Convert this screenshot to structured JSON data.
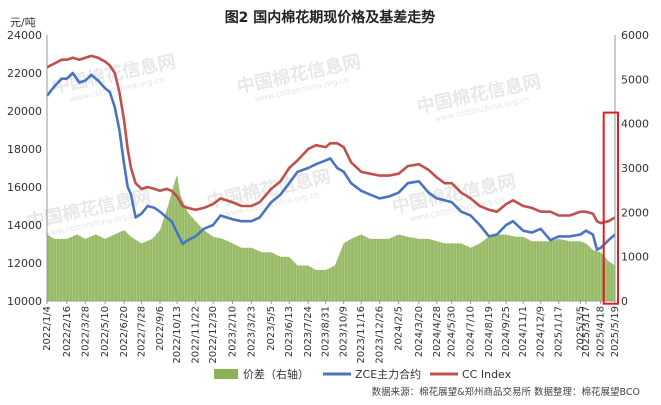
{
  "chart_data": {
    "type": "line",
    "title": "图2  国内棉花期现价格及基差走势",
    "y_left_unit": "元/吨",
    "y_left_range": [
      10000,
      24000
    ],
    "y_left_ticks": [
      "10000",
      "12000",
      "14000",
      "16000",
      "18000",
      "20000",
      "22000",
      "24000"
    ],
    "y_right_range": [
      0,
      6000
    ],
    "y_right_ticks": [
      "0",
      "1000",
      "2000",
      "3000",
      "4000",
      "5000",
      "6000"
    ],
    "x_range": [
      "2022-01-04",
      "2025-05-19"
    ],
    "x_ticks": [
      {
        "label": "2022/1/4",
        "date": "2022-01-04"
      },
      {
        "label": "2022/2/16",
        "date": "2022-02-16"
      },
      {
        "label": "2022/3/28",
        "date": "2022-03-28"
      },
      {
        "label": "2022/5/10",
        "date": "2022-05-10"
      },
      {
        "label": "2022/6/20",
        "date": "2022-06-20"
      },
      {
        "label": "2022/7/28",
        "date": "2022-07-28"
      },
      {
        "label": "2022/9/6",
        "date": "2022-09-06"
      },
      {
        "label": "2022/10/13",
        "date": "2022-10-13"
      },
      {
        "label": "2022/11/22",
        "date": "2022-11-22"
      },
      {
        "label": "2022/12/30",
        "date": "2022-12-30"
      },
      {
        "label": "2023/2/10",
        "date": "2023-02-10"
      },
      {
        "label": "2023/3/23",
        "date": "2023-03-23"
      },
      {
        "label": "2023/5/5",
        "date": "2023-05-05"
      },
      {
        "label": "2023/6/13",
        "date": "2023-06-13"
      },
      {
        "label": "2023/7/24",
        "date": "2023-07-24"
      },
      {
        "label": "2023/8/31",
        "date": "2023-08-31"
      },
      {
        "label": "2023/10/9",
        "date": "2023-10-09"
      },
      {
        "label": "2023/11/16",
        "date": "2023-11-16"
      },
      {
        "label": "2023/12/26",
        "date": "2023-12-26"
      },
      {
        "label": "2024/2/5",
        "date": "2024-02-05"
      },
      {
        "label": "2024/3/20",
        "date": "2024-03-20"
      },
      {
        "label": "2024/4/28",
        "date": "2024-04-28"
      },
      {
        "label": "2024/5/30",
        "date": "2024-05-30"
      },
      {
        "label": "2024/7/10",
        "date": "2024-07-10"
      },
      {
        "label": "2024/8/19",
        "date": "2024-08-19"
      },
      {
        "label": "2024/9/25",
        "date": "2024-09-25"
      },
      {
        "label": "2024/11/1",
        "date": "2024-11-01"
      },
      {
        "label": "2024/12/9",
        "date": "2024-12-09"
      },
      {
        "label": "2025/1/17",
        "date": "2025-01-17"
      },
      {
        "label": "2025/3/5",
        "date": "2025-03-05"
      },
      {
        "label": "2025/3/17",
        "date": "2025-03-17"
      },
      {
        "label": "2025/4/18",
        "date": "2025-04-18"
      },
      {
        "label": "2025/5/19",
        "date": "2025-05-19"
      }
    ],
    "series": [
      {
        "name": "价差（右轴）",
        "type": "area",
        "axis": "right",
        "color": "#8db255",
        "points": [
          [
            "2022-01-04",
            1500
          ],
          [
            "2022-01-20",
            1400
          ],
          [
            "2022-02-16",
            1400
          ],
          [
            "2022-03-10",
            1500
          ],
          [
            "2022-03-28",
            1400
          ],
          [
            "2022-04-20",
            1500
          ],
          [
            "2022-05-10",
            1400
          ],
          [
            "2022-05-30",
            1500
          ],
          [
            "2022-06-20",
            1600
          ],
          [
            "2022-07-05",
            1450
          ],
          [
            "2022-07-28",
            1300
          ],
          [
            "2022-08-20",
            1400
          ],
          [
            "2022-09-06",
            1600
          ],
          [
            "2022-09-25",
            2200
          ],
          [
            "2022-10-05",
            2600
          ],
          [
            "2022-10-13",
            2850
          ],
          [
            "2022-10-20",
            2400
          ],
          [
            "2022-11-05",
            2000
          ],
          [
            "2022-11-22",
            1800
          ],
          [
            "2022-12-10",
            1600
          ],
          [
            "2022-12-30",
            1450
          ],
          [
            "2023-01-20",
            1400
          ],
          [
            "2023-02-10",
            1300
          ],
          [
            "2023-03-01",
            1200
          ],
          [
            "2023-03-23",
            1200
          ],
          [
            "2023-04-15",
            1100
          ],
          [
            "2023-05-05",
            1100
          ],
          [
            "2023-05-25",
            1000
          ],
          [
            "2023-06-13",
            1000
          ],
          [
            "2023-07-01",
            800
          ],
          [
            "2023-07-24",
            800
          ],
          [
            "2023-08-10",
            700
          ],
          [
            "2023-08-31",
            700
          ],
          [
            "2023-09-20",
            800
          ],
          [
            "2023-10-09",
            1300
          ],
          [
            "2023-10-25",
            1400
          ],
          [
            "2023-11-16",
            1500
          ],
          [
            "2023-12-05",
            1400
          ],
          [
            "2023-12-26",
            1400
          ],
          [
            "2024-01-15",
            1400
          ],
          [
            "2024-02-05",
            1500
          ],
          [
            "2024-02-25",
            1450
          ],
          [
            "2024-03-20",
            1400
          ],
          [
            "2024-04-10",
            1400
          ],
          [
            "2024-04-28",
            1350
          ],
          [
            "2024-05-15",
            1300
          ],
          [
            "2024-05-30",
            1300
          ],
          [
            "2024-06-20",
            1300
          ],
          [
            "2024-07-10",
            1200
          ],
          [
            "2024-07-30",
            1300
          ],
          [
            "2024-08-19",
            1450
          ],
          [
            "2024-09-05",
            1500
          ],
          [
            "2024-09-25",
            1500
          ],
          [
            "2024-10-15",
            1450
          ],
          [
            "2024-11-01",
            1450
          ],
          [
            "2024-11-20",
            1350
          ],
          [
            "2024-12-09",
            1350
          ],
          [
            "2024-12-30",
            1350
          ],
          [
            "2025-01-17",
            1400
          ],
          [
            "2025-02-10",
            1350
          ],
          [
            "2025-03-05",
            1350
          ],
          [
            "2025-03-17",
            1300
          ],
          [
            "2025-04-01",
            1150
          ],
          [
            "2025-04-18",
            1100
          ],
          [
            "2025-05-05",
            900
          ],
          [
            "2025-05-19",
            800
          ]
        ]
      },
      {
        "name": "ZCE主力合约",
        "type": "line",
        "axis": "left",
        "color": "#4a74c0",
        "points": [
          [
            "2022-01-04",
            20800
          ],
          [
            "2022-01-20",
            21300
          ],
          [
            "2022-02-05",
            21700
          ],
          [
            "2022-02-16",
            21700
          ],
          [
            "2022-03-01",
            22000
          ],
          [
            "2022-03-15",
            21500
          ],
          [
            "2022-03-28",
            21600
          ],
          [
            "2022-04-10",
            21900
          ],
          [
            "2022-04-25",
            21600
          ],
          [
            "2022-05-10",
            21200
          ],
          [
            "2022-05-20",
            21000
          ],
          [
            "2022-05-31",
            20200
          ],
          [
            "2022-06-10",
            19000
          ],
          [
            "2022-06-20",
            17200
          ],
          [
            "2022-06-28",
            16000
          ],
          [
            "2022-07-05",
            15600
          ],
          [
            "2022-07-15",
            14400
          ],
          [
            "2022-07-28",
            14600
          ],
          [
            "2022-08-10",
            15000
          ],
          [
            "2022-08-25",
            14900
          ],
          [
            "2022-09-06",
            14700
          ],
          [
            "2022-09-20",
            14400
          ],
          [
            "2022-10-01",
            14200
          ],
          [
            "2022-10-13",
            13600
          ],
          [
            "2022-10-25",
            13000
          ],
          [
            "2022-11-05",
            13200
          ],
          [
            "2022-11-22",
            13400
          ],
          [
            "2022-12-10",
            13800
          ],
          [
            "2022-12-30",
            14000
          ],
          [
            "2023-01-15",
            14500
          ],
          [
            "2023-02-10",
            14300
          ],
          [
            "2023-03-01",
            14200
          ],
          [
            "2023-03-23",
            14200
          ],
          [
            "2023-04-10",
            14400
          ],
          [
            "2023-05-05",
            15200
          ],
          [
            "2023-05-25",
            15600
          ],
          [
            "2023-06-13",
            16200
          ],
          [
            "2023-07-01",
            16800
          ],
          [
            "2023-07-24",
            17000
          ],
          [
            "2023-08-10",
            17200
          ],
          [
            "2023-08-31",
            17400
          ],
          [
            "2023-09-10",
            17500
          ],
          [
            "2023-09-25",
            17000
          ],
          [
            "2023-10-09",
            16800
          ],
          [
            "2023-10-25",
            16200
          ],
          [
            "2023-11-16",
            15800
          ],
          [
            "2023-12-05",
            15600
          ],
          [
            "2023-12-26",
            15400
          ],
          [
            "2024-01-15",
            15500
          ],
          [
            "2024-02-05",
            15700
          ],
          [
            "2024-02-25",
            16200
          ],
          [
            "2024-03-20",
            16300
          ],
          [
            "2024-04-10",
            15700
          ],
          [
            "2024-04-28",
            15400
          ],
          [
            "2024-05-15",
            15300
          ],
          [
            "2024-05-30",
            15200
          ],
          [
            "2024-06-20",
            14700
          ],
          [
            "2024-07-10",
            14500
          ],
          [
            "2024-07-30",
            14000
          ],
          [
            "2024-08-19",
            13400
          ],
          [
            "2024-09-05",
            13500
          ],
          [
            "2024-09-25",
            14000
          ],
          [
            "2024-10-10",
            14200
          ],
          [
            "2024-11-01",
            13700
          ],
          [
            "2024-11-20",
            13600
          ],
          [
            "2024-12-09",
            13800
          ],
          [
            "2024-12-30",
            13200
          ],
          [
            "2025-01-17",
            13400
          ],
          [
            "2025-02-10",
            13400
          ],
          [
            "2025-03-05",
            13500
          ],
          [
            "2025-03-17",
            13700
          ],
          [
            "2025-04-01",
            13500
          ],
          [
            "2025-04-10",
            12700
          ],
          [
            "2025-04-18",
            12800
          ],
          [
            "2025-05-05",
            13200
          ],
          [
            "2025-05-19",
            13500
          ]
        ]
      },
      {
        "name": "CC Index",
        "type": "line",
        "axis": "left",
        "color": "#c0504d",
        "points": [
          [
            "2022-01-04",
            22300
          ],
          [
            "2022-01-20",
            22500
          ],
          [
            "2022-02-05",
            22700
          ],
          [
            "2022-02-16",
            22700
          ],
          [
            "2022-03-01",
            22800
          ],
          [
            "2022-03-15",
            22700
          ],
          [
            "2022-03-28",
            22800
          ],
          [
            "2022-04-10",
            22900
          ],
          [
            "2022-04-25",
            22800
          ],
          [
            "2022-05-10",
            22600
          ],
          [
            "2022-05-20",
            22400
          ],
          [
            "2022-05-31",
            22000
          ],
          [
            "2022-06-10",
            21000
          ],
          [
            "2022-06-20",
            19500
          ],
          [
            "2022-06-28",
            18000
          ],
          [
            "2022-07-05",
            17000
          ],
          [
            "2022-07-15",
            16200
          ],
          [
            "2022-07-28",
            15900
          ],
          [
            "2022-08-10",
            16000
          ],
          [
            "2022-08-25",
            15900
          ],
          [
            "2022-09-06",
            15800
          ],
          [
            "2022-09-20",
            15900
          ],
          [
            "2022-10-01",
            15800
          ],
          [
            "2022-10-13",
            15500
          ],
          [
            "2022-10-25",
            15000
          ],
          [
            "2022-11-05",
            14900
          ],
          [
            "2022-11-22",
            14800
          ],
          [
            "2022-12-10",
            14900
          ],
          [
            "2022-12-30",
            15100
          ],
          [
            "2023-01-15",
            15400
          ],
          [
            "2023-02-10",
            15200
          ],
          [
            "2023-03-01",
            15000
          ],
          [
            "2023-03-23",
            15000
          ],
          [
            "2023-04-10",
            15200
          ],
          [
            "2023-05-05",
            15900
          ],
          [
            "2023-05-25",
            16300
          ],
          [
            "2023-06-13",
            17000
          ],
          [
            "2023-07-01",
            17400
          ],
          [
            "2023-07-24",
            18000
          ],
          [
            "2023-08-10",
            18200
          ],
          [
            "2023-08-31",
            18100
          ],
          [
            "2023-09-10",
            18300
          ],
          [
            "2023-09-25",
            18300
          ],
          [
            "2023-10-09",
            18100
          ],
          [
            "2023-10-25",
            17300
          ],
          [
            "2023-11-16",
            16800
          ],
          [
            "2023-12-05",
            16700
          ],
          [
            "2023-12-26",
            16600
          ],
          [
            "2024-01-15",
            16600
          ],
          [
            "2024-02-05",
            16700
          ],
          [
            "2024-02-25",
            17100
          ],
          [
            "2024-03-20",
            17200
          ],
          [
            "2024-04-10",
            16900
          ],
          [
            "2024-04-28",
            16500
          ],
          [
            "2024-05-15",
            16200
          ],
          [
            "2024-05-30",
            16200
          ],
          [
            "2024-06-20",
            15700
          ],
          [
            "2024-07-10",
            15400
          ],
          [
            "2024-07-30",
            15000
          ],
          [
            "2024-08-19",
            14800
          ],
          [
            "2024-09-05",
            14700
          ],
          [
            "2024-09-25",
            15100
          ],
          [
            "2024-10-10",
            15300
          ],
          [
            "2024-11-01",
            15000
          ],
          [
            "2024-11-20",
            14900
          ],
          [
            "2024-12-09",
            14700
          ],
          [
            "2024-12-30",
            14700
          ],
          [
            "2025-01-17",
            14500
          ],
          [
            "2025-02-10",
            14500
          ],
          [
            "2025-03-05",
            14700
          ],
          [
            "2025-03-17",
            14700
          ],
          [
            "2025-04-01",
            14600
          ],
          [
            "2025-04-10",
            14200
          ],
          [
            "2025-04-18",
            14100
          ],
          [
            "2025-05-05",
            14200
          ],
          [
            "2025-05-19",
            14400
          ]
        ]
      }
    ],
    "highlight_box": {
      "color": "#e02020",
      "x_from": "2025-05-01",
      "x_to": "2025-05-19"
    },
    "legend": {
      "position": "bottom"
    },
    "source_note": "数据来源：棉花展望&郑州商品交易所   数据整理：棉花展望BCO",
    "grid": false
  },
  "watermark": {
    "text": "中国棉花信息网",
    "url": "www.cottonchina.org.cn",
    "color": "#c9c9c9"
  }
}
